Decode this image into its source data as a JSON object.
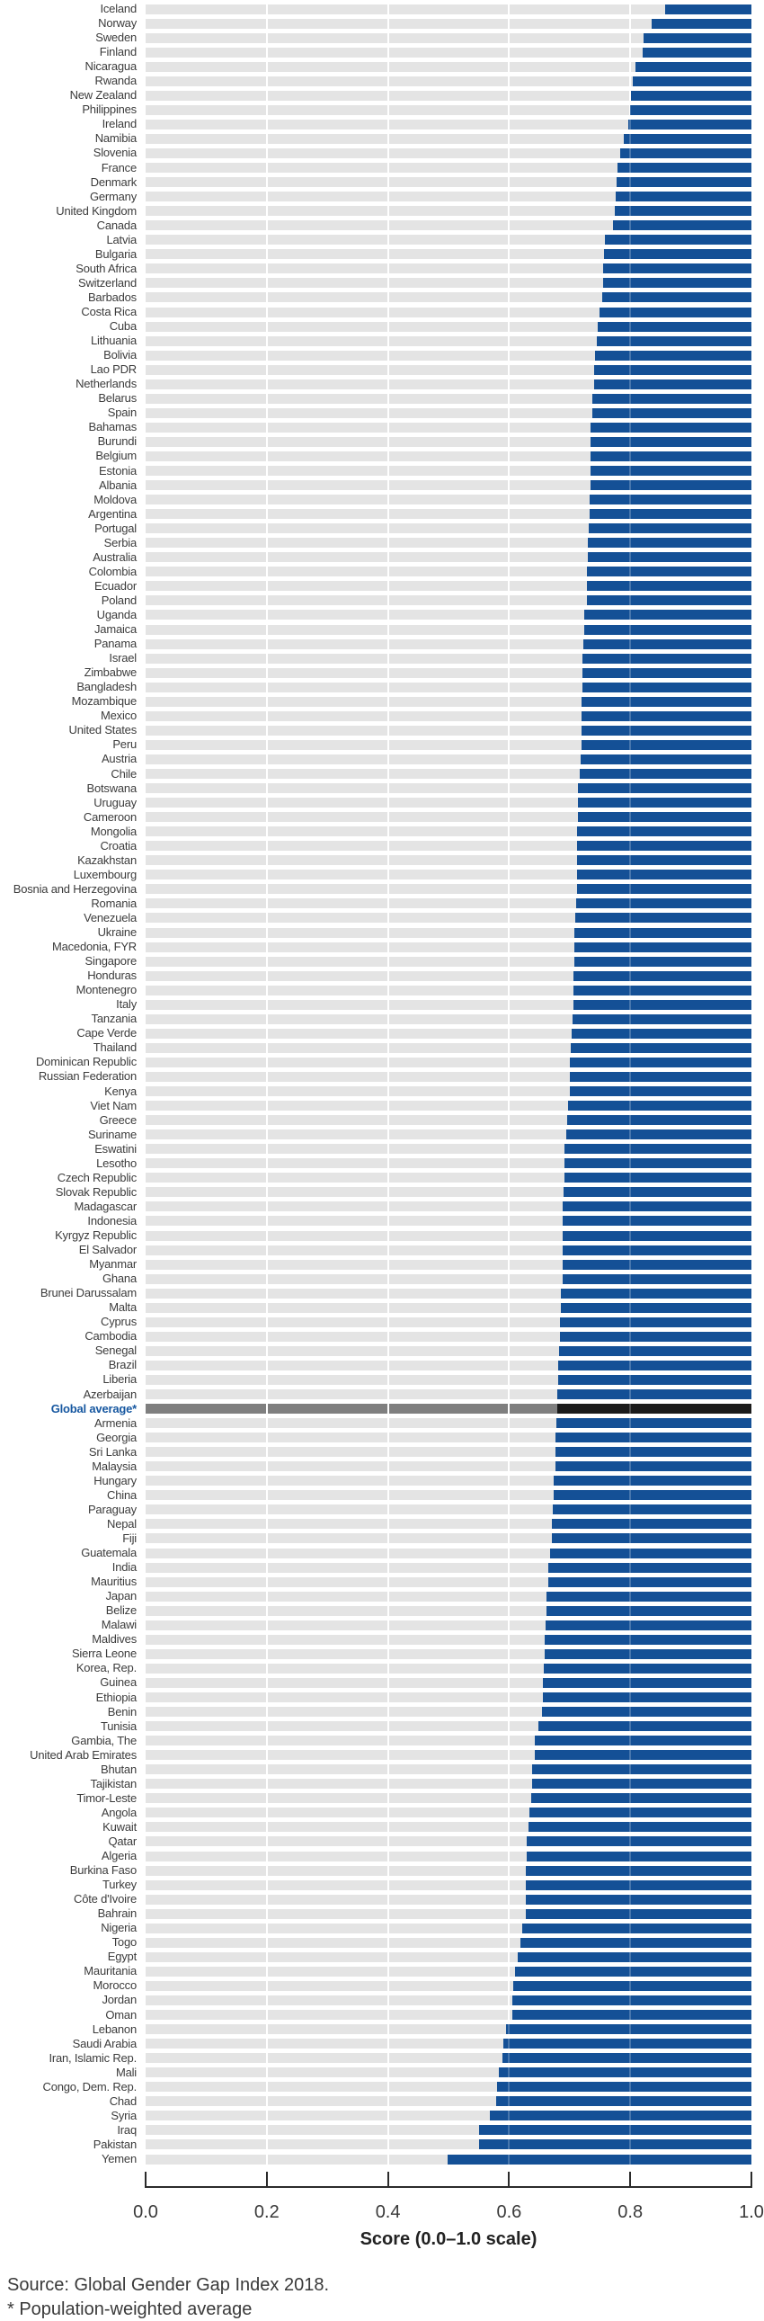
{
  "chart_data": {
    "type": "bar",
    "orientation": "horizontal",
    "title": "",
    "xlabel": "Score (0.0–1.0 scale)",
    "xlim": [
      0.0,
      1.0
    ],
    "x_ticks": [
      "0.0",
      "0.2",
      "0.4",
      "0.6",
      "0.8",
      "1.0"
    ],
    "gridlines_at": [
      0.2,
      0.4,
      0.6,
      0.8
    ],
    "legend_position": "none",
    "bar_encoding": "gray track spans 0 to score; blue bar spans score to 1.0 (remaining gender gap)",
    "source": "Source: Global Gender Gap Index 2018.",
    "footnote": "* Population-weighted average",
    "rows": [
      {
        "label": "Iceland",
        "score": 0.858
      },
      {
        "label": "Norway",
        "score": 0.835
      },
      {
        "label": "Sweden",
        "score": 0.822
      },
      {
        "label": "Finland",
        "score": 0.821
      },
      {
        "label": "Nicaragua",
        "score": 0.809
      },
      {
        "label": "Rwanda",
        "score": 0.804
      },
      {
        "label": "New Zealand",
        "score": 0.801
      },
      {
        "label": "Philippines",
        "score": 0.799
      },
      {
        "label": "Ireland",
        "score": 0.796
      },
      {
        "label": "Namibia",
        "score": 0.789
      },
      {
        "label": "Slovenia",
        "score": 0.784
      },
      {
        "label": "France",
        "score": 0.779
      },
      {
        "label": "Denmark",
        "score": 0.778
      },
      {
        "label": "Germany",
        "score": 0.776
      },
      {
        "label": "United Kingdom",
        "score": 0.774
      },
      {
        "label": "Canada",
        "score": 0.771
      },
      {
        "label": "Latvia",
        "score": 0.758
      },
      {
        "label": "Bulgaria",
        "score": 0.756
      },
      {
        "label": "South Africa",
        "score": 0.755
      },
      {
        "label": "Switzerland",
        "score": 0.755
      },
      {
        "label": "Barbados",
        "score": 0.753
      },
      {
        "label": "Costa Rica",
        "score": 0.749
      },
      {
        "label": "Cuba",
        "score": 0.746
      },
      {
        "label": "Lithuania",
        "score": 0.745
      },
      {
        "label": "Bolivia",
        "score": 0.742
      },
      {
        "label": "Lao PDR",
        "score": 0.741
      },
      {
        "label": "Netherlands",
        "score": 0.74
      },
      {
        "label": "Belarus",
        "score": 0.738
      },
      {
        "label": "Spain",
        "score": 0.737
      },
      {
        "label": "Bahamas",
        "score": 0.735
      },
      {
        "label": "Burundi",
        "score": 0.735
      },
      {
        "label": "Belgium",
        "score": 0.734
      },
      {
        "label": "Estonia",
        "score": 0.734
      },
      {
        "label": "Albania",
        "score": 0.734
      },
      {
        "label": "Moldova",
        "score": 0.733
      },
      {
        "label": "Argentina",
        "score": 0.733
      },
      {
        "label": "Portugal",
        "score": 0.732
      },
      {
        "label": "Serbia",
        "score": 0.73
      },
      {
        "label": "Australia",
        "score": 0.73
      },
      {
        "label": "Colombia",
        "score": 0.729
      },
      {
        "label": "Ecuador",
        "score": 0.729
      },
      {
        "label": "Poland",
        "score": 0.728
      },
      {
        "label": "Uganda",
        "score": 0.724
      },
      {
        "label": "Jamaica",
        "score": 0.724
      },
      {
        "label": "Panama",
        "score": 0.722
      },
      {
        "label": "Israel",
        "score": 0.721
      },
      {
        "label": "Zimbabwe",
        "score": 0.721
      },
      {
        "label": "Bangladesh",
        "score": 0.721
      },
      {
        "label": "Mozambique",
        "score": 0.72
      },
      {
        "label": "Mexico",
        "score": 0.72
      },
      {
        "label": "United States",
        "score": 0.72
      },
      {
        "label": "Peru",
        "score": 0.719
      },
      {
        "label": "Austria",
        "score": 0.718
      },
      {
        "label": "Chile",
        "score": 0.717
      },
      {
        "label": "Botswana",
        "score": 0.714
      },
      {
        "label": "Uruguay",
        "score": 0.714
      },
      {
        "label": "Cameroon",
        "score": 0.713
      },
      {
        "label": "Mongolia",
        "score": 0.712
      },
      {
        "label": "Croatia",
        "score": 0.712
      },
      {
        "label": "Kazakhstan",
        "score": 0.712
      },
      {
        "label": "Luxembourg",
        "score": 0.712
      },
      {
        "label": "Bosnia and Herzegovina",
        "score": 0.712
      },
      {
        "label": "Romania",
        "score": 0.711
      },
      {
        "label": "Venezuela",
        "score": 0.709
      },
      {
        "label": "Ukraine",
        "score": 0.708
      },
      {
        "label": "Macedonia, FYR",
        "score": 0.708
      },
      {
        "label": "Singapore",
        "score": 0.707
      },
      {
        "label": "Honduras",
        "score": 0.706
      },
      {
        "label": "Montenegro",
        "score": 0.706
      },
      {
        "label": "Italy",
        "score": 0.706
      },
      {
        "label": "Tanzania",
        "score": 0.704
      },
      {
        "label": "Cape Verde",
        "score": 0.703
      },
      {
        "label": "Thailand",
        "score": 0.702
      },
      {
        "label": "Dominican Republic",
        "score": 0.701
      },
      {
        "label": "Russian Federation",
        "score": 0.701
      },
      {
        "label": "Kenya",
        "score": 0.7
      },
      {
        "label": "Viet Nam",
        "score": 0.698
      },
      {
        "label": "Greece",
        "score": 0.696
      },
      {
        "label": "Suriname",
        "score": 0.694
      },
      {
        "label": "Eswatini",
        "score": 0.692
      },
      {
        "label": "Lesotho",
        "score": 0.691
      },
      {
        "label": "Czech Republic",
        "score": 0.691
      },
      {
        "label": "Slovak Republic",
        "score": 0.69
      },
      {
        "label": "Madagascar",
        "score": 0.689
      },
      {
        "label": "Indonesia",
        "score": 0.689
      },
      {
        "label": "Kyrgyz Republic",
        "score": 0.689
      },
      {
        "label": "El Salvador",
        "score": 0.689
      },
      {
        "label": "Myanmar",
        "score": 0.688
      },
      {
        "label": "Ghana",
        "score": 0.688
      },
      {
        "label": "Brunei Darussalam",
        "score": 0.686
      },
      {
        "label": "Malta",
        "score": 0.686
      },
      {
        "label": "Cyprus",
        "score": 0.684
      },
      {
        "label": "Cambodia",
        "score": 0.684
      },
      {
        "label": "Senegal",
        "score": 0.683
      },
      {
        "label": "Brazil",
        "score": 0.681
      },
      {
        "label": "Liberia",
        "score": 0.681
      },
      {
        "label": "Azerbaijan",
        "score": 0.68
      },
      {
        "label": "Global average*",
        "score": 0.68,
        "highlight": true
      },
      {
        "label": "Armenia",
        "score": 0.678
      },
      {
        "label": "Georgia",
        "score": 0.677
      },
      {
        "label": "Sri Lanka",
        "score": 0.676
      },
      {
        "label": "Malaysia",
        "score": 0.676
      },
      {
        "label": "Hungary",
        "score": 0.674
      },
      {
        "label": "China",
        "score": 0.673
      },
      {
        "label": "Paraguay",
        "score": 0.672
      },
      {
        "label": "Nepal",
        "score": 0.671
      },
      {
        "label": "Fiji",
        "score": 0.67
      },
      {
        "label": "Guatemala",
        "score": 0.667
      },
      {
        "label": "India",
        "score": 0.665
      },
      {
        "label": "Mauritius",
        "score": 0.664
      },
      {
        "label": "Japan",
        "score": 0.662
      },
      {
        "label": "Belize",
        "score": 0.661
      },
      {
        "label": "Malawi",
        "score": 0.66
      },
      {
        "label": "Maldives",
        "score": 0.659
      },
      {
        "label": "Sierra Leone",
        "score": 0.658
      },
      {
        "label": "Korea, Rep.",
        "score": 0.657
      },
      {
        "label": "Guinea",
        "score": 0.656
      },
      {
        "label": "Ethiopia",
        "score": 0.656
      },
      {
        "label": "Benin",
        "score": 0.655
      },
      {
        "label": "Tunisia",
        "score": 0.648
      },
      {
        "label": "Gambia, The",
        "score": 0.642
      },
      {
        "label": "United Arab Emirates",
        "score": 0.642
      },
      {
        "label": "Bhutan",
        "score": 0.638
      },
      {
        "label": "Tajikistan",
        "score": 0.638
      },
      {
        "label": "Timor-Leste",
        "score": 0.636
      },
      {
        "label": "Angola",
        "score": 0.633
      },
      {
        "label": "Kuwait",
        "score": 0.632
      },
      {
        "label": "Qatar",
        "score": 0.629
      },
      {
        "label": "Algeria",
        "score": 0.629
      },
      {
        "label": "Burkina Faso",
        "score": 0.628
      },
      {
        "label": "Turkey",
        "score": 0.628
      },
      {
        "label": "Côte d'Ivoire",
        "score": 0.627
      },
      {
        "label": "Bahrain",
        "score": 0.627
      },
      {
        "label": "Nigeria",
        "score": 0.621
      },
      {
        "label": "Togo",
        "score": 0.618
      },
      {
        "label": "Egypt",
        "score": 0.614
      },
      {
        "label": "Mauritania",
        "score": 0.61
      },
      {
        "label": "Morocco",
        "score": 0.607
      },
      {
        "label": "Jordan",
        "score": 0.605
      },
      {
        "label": "Oman",
        "score": 0.605
      },
      {
        "label": "Lebanon",
        "score": 0.595
      },
      {
        "label": "Saudi Arabia",
        "score": 0.59
      },
      {
        "label": "Iran, Islamic Rep.",
        "score": 0.589
      },
      {
        "label": "Mali",
        "score": 0.583
      },
      {
        "label": "Congo, Dem. Rep.",
        "score": 0.58
      },
      {
        "label": "Chad",
        "score": 0.578
      },
      {
        "label": "Syria",
        "score": 0.568
      },
      {
        "label": "Iraq",
        "score": 0.551
      },
      {
        "label": "Pakistan",
        "score": 0.55
      },
      {
        "label": "Yemen",
        "score": 0.499
      }
    ]
  },
  "colors": {
    "bar_blue": "#145096",
    "track_gray": "#e4e4e4",
    "average_track_gray": "#7f7f7f",
    "average_bar_black": "#1b1b1b",
    "label_gray": "#3c3c3c",
    "average_label_blue": "#1657a0",
    "axis_dark": "#2b2b2b"
  }
}
